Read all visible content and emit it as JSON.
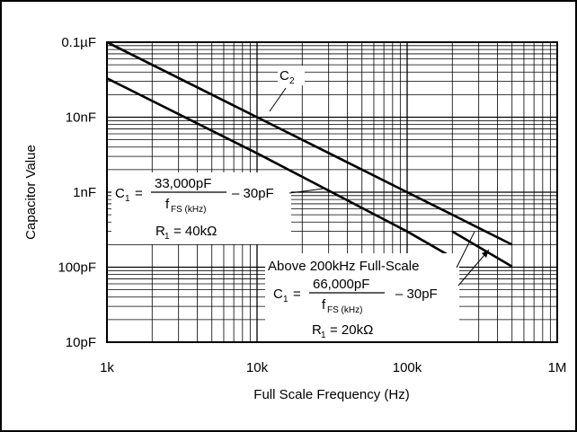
{
  "chart_data": {
    "type": "line",
    "title": "",
    "xlabel": "Full Scale Frequency (Hz)",
    "ylabel": "Capacitor Value",
    "x_scale": "log",
    "y_scale": "log",
    "xlim_hz": [
      1000,
      1000000
    ],
    "ylim_pf": [
      10,
      100000
    ],
    "grid": true,
    "x_ticks": [
      {
        "value": 1000,
        "label": "1k"
      },
      {
        "value": 10000,
        "label": "10k"
      },
      {
        "value": 100000,
        "label": "100k"
      },
      {
        "value": 1000000,
        "label": "1M"
      }
    ],
    "y_ticks": [
      {
        "value": 10,
        "label": "10pF"
      },
      {
        "value": 100,
        "label": "100pF"
      },
      {
        "value": 1000,
        "label": "1nF"
      },
      {
        "value": 10000,
        "label": "10nF"
      },
      {
        "value": 100000,
        "label": "0.1µF"
      }
    ],
    "series": [
      {
        "name": "C2",
        "x": [
          1000,
          10000,
          100000,
          200000,
          500000
        ],
        "y": [
          100000,
          10000,
          1000,
          500,
          200
        ]
      },
      {
        "name": "C1",
        "x": [
          1000,
          10000,
          100000,
          200000
        ],
        "y": [
          33000,
          3300,
          300,
          135
        ]
      },
      {
        "name": "C1",
        "x": [
          200000,
          500000
        ],
        "y": [
          300,
          102
        ]
      }
    ],
    "annotations": {
      "c2_label": {
        "main": "C",
        "sub": "2"
      },
      "low_freq_formula": {
        "c": "C",
        "c_sub": "1",
        "eq": "=",
        "numerator": "33,000pF",
        "den_main": "f",
        "den_sub": "FS (kHz)",
        "tail": "– 30pF",
        "r_main": "R",
        "r_sub": "1",
        "r_value": "= 40kΩ"
      },
      "high_freq_formula": {
        "heading": "Above 200kHz Full-Scale",
        "c": "C",
        "c_sub": "1",
        "eq": "=",
        "numerator": "66,000pF",
        "den_main": "f",
        "den_sub": "FS (kHz)",
        "tail": "– 30pF",
        "r_main": "R",
        "r_sub": "1",
        "r_value": "= 20kΩ"
      }
    }
  }
}
